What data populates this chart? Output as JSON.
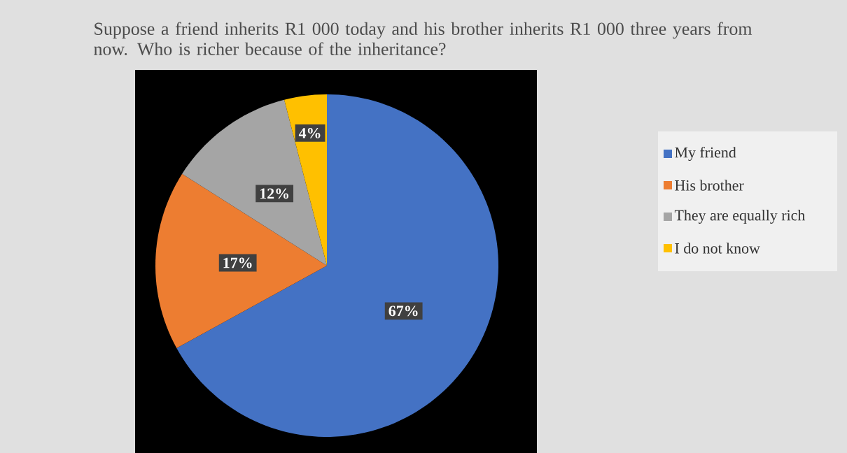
{
  "chart_data": {
    "type": "pie",
    "title": "Suppose a friend inherits R1 000 today and his brother inherits R1 000 three years from now. Who is richer because of the inheritance?",
    "categories": [
      "My friend",
      "His brother",
      "They are equally rich",
      "I do not know"
    ],
    "values": [
      67,
      17,
      12,
      4
    ],
    "colors": [
      "#4472c4",
      "#ed7d31",
      "#a5a5a5",
      "#ffc000"
    ],
    "value_labels": [
      "67%",
      "17%",
      "12%",
      "4%"
    ],
    "legend": "right"
  }
}
